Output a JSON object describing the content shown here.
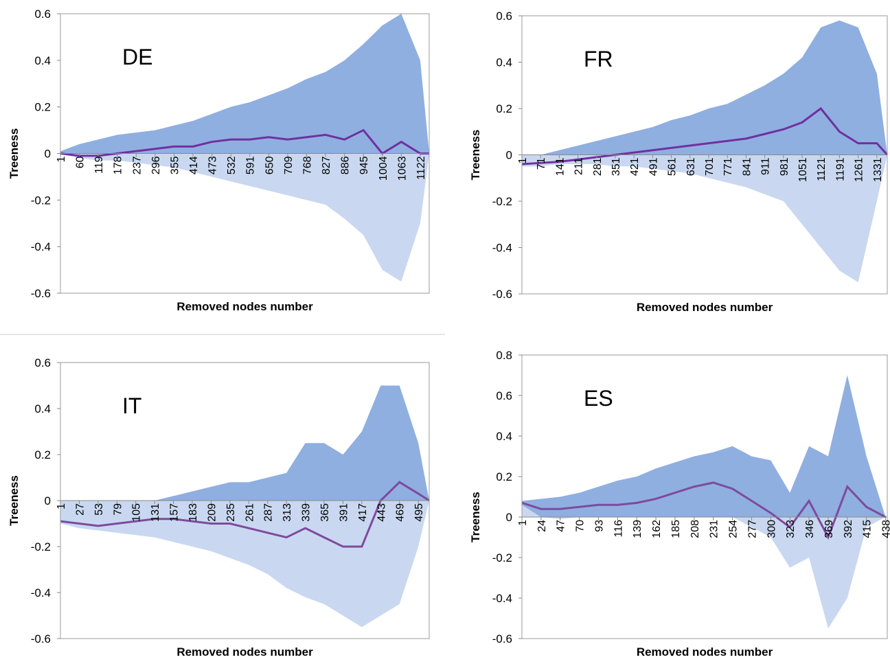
{
  "chart_data": [
    {
      "type": "line",
      "title": "DE",
      "xlabel": "Removed nodes number",
      "ylabel": "Treeness",
      "x": [
        1,
        60,
        119,
        178,
        237,
        296,
        355,
        414,
        473,
        532,
        591,
        650,
        709,
        768,
        827,
        886,
        945,
        1004,
        1063,
        1122,
        1150
      ],
      "xlim": [
        1,
        1150
      ],
      "xticks": [
        1,
        60,
        119,
        178,
        237,
        296,
        355,
        414,
        473,
        532,
        591,
        650,
        709,
        768,
        827,
        886,
        945,
        1004,
        1063,
        1122
      ],
      "ylim": [
        -0.6,
        0.6
      ],
      "yticks": [
        -0.6,
        -0.4,
        -0.2,
        0,
        0.2,
        0.4,
        0.6
      ],
      "band": {
        "color": "#8fafe0",
        "lower_color": "#c9d8f0",
        "upper": [
          0.01,
          0.04,
          0.06,
          0.08,
          0.09,
          0.1,
          0.12,
          0.14,
          0.17,
          0.2,
          0.22,
          0.25,
          0.28,
          0.32,
          0.35,
          0.4,
          0.47,
          0.55,
          0.6,
          0.4,
          0
        ],
        "lower": [
          0,
          -0.02,
          -0.03,
          -0.03,
          -0.04,
          -0.05,
          -0.06,
          -0.08,
          -0.1,
          -0.12,
          -0.14,
          -0.16,
          -0.18,
          -0.2,
          -0.22,
          -0.28,
          -0.35,
          -0.5,
          -0.55,
          -0.3,
          0
        ]
      },
      "series": [
        {
          "color": "#7030a0",
          "values": [
            0,
            -0.01,
            -0.01,
            0,
            0.01,
            0.02,
            0.03,
            0.03,
            0.05,
            0.06,
            0.06,
            0.07,
            0.06,
            0.07,
            0.08,
            0.06,
            0.1,
            0,
            0.05,
            0,
            0
          ]
        }
      ]
    },
    {
      "type": "line",
      "title": "FR",
      "xlabel": "Removed nodes number",
      "ylabel": "Treeness",
      "x": [
        1,
        71,
        141,
        211,
        281,
        351,
        421,
        491,
        561,
        631,
        701,
        771,
        841,
        911,
        981,
        1051,
        1121,
        1191,
        1261,
        1331,
        1370
      ],
      "xlim": [
        1,
        1370
      ],
      "xticks": [
        1,
        71,
        141,
        211,
        281,
        351,
        421,
        491,
        561,
        631,
        701,
        771,
        841,
        911,
        981,
        1051,
        1121,
        1191,
        1261,
        1331
      ],
      "ylim": [
        -0.6,
        0.6
      ],
      "yticks": [
        -0.6,
        -0.4,
        -0.2,
        0,
        0.2,
        0.4,
        0.6
      ],
      "band": {
        "color": "#8fafe0",
        "lower_color": "#c9d8f0",
        "upper": [
          -0.02,
          0,
          0.02,
          0.04,
          0.06,
          0.08,
          0.1,
          0.12,
          0.15,
          0.17,
          0.2,
          0.22,
          0.26,
          0.3,
          0.35,
          0.42,
          0.55,
          0.58,
          0.55,
          0.35,
          0
        ],
        "lower": [
          -0.05,
          -0.05,
          -0.04,
          -0.04,
          -0.04,
          -0.05,
          -0.05,
          -0.06,
          -0.07,
          -0.08,
          -0.1,
          -0.12,
          -0.14,
          -0.17,
          -0.2,
          -0.3,
          -0.4,
          -0.5,
          -0.55,
          -0.2,
          0
        ]
      },
      "series": [
        {
          "color": "#7030a0",
          "values": [
            -0.04,
            -0.035,
            -0.03,
            -0.02,
            -0.01,
            0,
            0.01,
            0.02,
            0.03,
            0.04,
            0.05,
            0.06,
            0.07,
            0.09,
            0.11,
            0.14,
            0.2,
            0.1,
            0.05,
            0.05,
            0
          ]
        }
      ]
    },
    {
      "type": "line",
      "title": "IT",
      "xlabel": "Removed nodes number",
      "ylabel": "Treeness",
      "x": [
        1,
        27,
        53,
        79,
        105,
        131,
        157,
        183,
        209,
        235,
        261,
        287,
        313,
        339,
        365,
        391,
        417,
        443,
        469,
        495,
        510
      ],
      "xlim": [
        1,
        510
      ],
      "xticks": [
        1,
        27,
        53,
        79,
        105,
        131,
        157,
        183,
        209,
        235,
        261,
        287,
        313,
        339,
        365,
        391,
        417,
        443,
        469,
        495
      ],
      "ylim": [
        -0.6,
        0.6
      ],
      "yticks": [
        -0.6,
        -0.4,
        -0.2,
        0,
        0.2,
        0.4,
        0.6
      ],
      "band": {
        "color": "#8fafe0",
        "lower_color": "#c9d8f0",
        "upper": [
          -0.08,
          -0.06,
          -0.05,
          -0.04,
          -0.02,
          0,
          0.02,
          0.04,
          0.06,
          0.08,
          0.08,
          0.1,
          0.12,
          0.25,
          0.25,
          0.2,
          0.3,
          0.5,
          0.5,
          0.25,
          0
        ],
        "lower": [
          -0.1,
          -0.12,
          -0.13,
          -0.14,
          -0.15,
          -0.16,
          -0.18,
          -0.2,
          -0.22,
          -0.25,
          -0.28,
          -0.32,
          -0.38,
          -0.42,
          -0.45,
          -0.5,
          -0.55,
          -0.5,
          -0.45,
          -0.2,
          0
        ]
      },
      "series": [
        {
          "color": "#7e4a9e",
          "values": [
            -0.09,
            -0.1,
            -0.11,
            -0.1,
            -0.09,
            -0.08,
            -0.08,
            -0.09,
            -0.1,
            -0.1,
            -0.12,
            -0.14,
            -0.16,
            -0.12,
            -0.16,
            -0.2,
            -0.2,
            0,
            0.08,
            0.03,
            0
          ]
        }
      ]
    },
    {
      "type": "line",
      "title": "ES",
      "xlabel": "Removed nodes number",
      "ylabel": "Treeness",
      "x": [
        1,
        24,
        47,
        70,
        93,
        116,
        139,
        162,
        185,
        208,
        231,
        254,
        277,
        300,
        323,
        346,
        369,
        392,
        415,
        438
      ],
      "xlim": [
        1,
        440
      ],
      "xticks": [
        1,
        24,
        47,
        70,
        93,
        116,
        139,
        162,
        185,
        208,
        231,
        254,
        277,
        300,
        323,
        346,
        369,
        392,
        415,
        438
      ],
      "ylim": [
        -0.6,
        0.8
      ],
      "yticks": [
        -0.6,
        -0.4,
        -0.2,
        0,
        0.2,
        0.4,
        0.6,
        0.8
      ],
      "band": {
        "color": "#8fafe0",
        "lower_color": "#c9d8f0",
        "upper": [
          0.08,
          0.09,
          0.1,
          0.12,
          0.15,
          0.18,
          0.2,
          0.24,
          0.27,
          0.3,
          0.32,
          0.35,
          0.3,
          0.28,
          0.12,
          0.35,
          0.3,
          0.7,
          0.3,
          0
        ],
        "lower": [
          0.06,
          0,
          -0.01,
          0,
          0,
          0,
          0,
          0,
          0,
          0,
          0,
          0,
          -0.05,
          -0.1,
          -0.25,
          -0.2,
          -0.55,
          -0.4,
          -0.05,
          0
        ]
      },
      "series": [
        {
          "color": "#7e4a9e",
          "values": [
            0.07,
            0.04,
            0.04,
            0.05,
            0.06,
            0.06,
            0.07,
            0.09,
            0.12,
            0.15,
            0.17,
            0.14,
            0.08,
            0.02,
            -0.05,
            0.08,
            -0.1,
            0.15,
            0.05,
            0
          ]
        }
      ]
    }
  ]
}
